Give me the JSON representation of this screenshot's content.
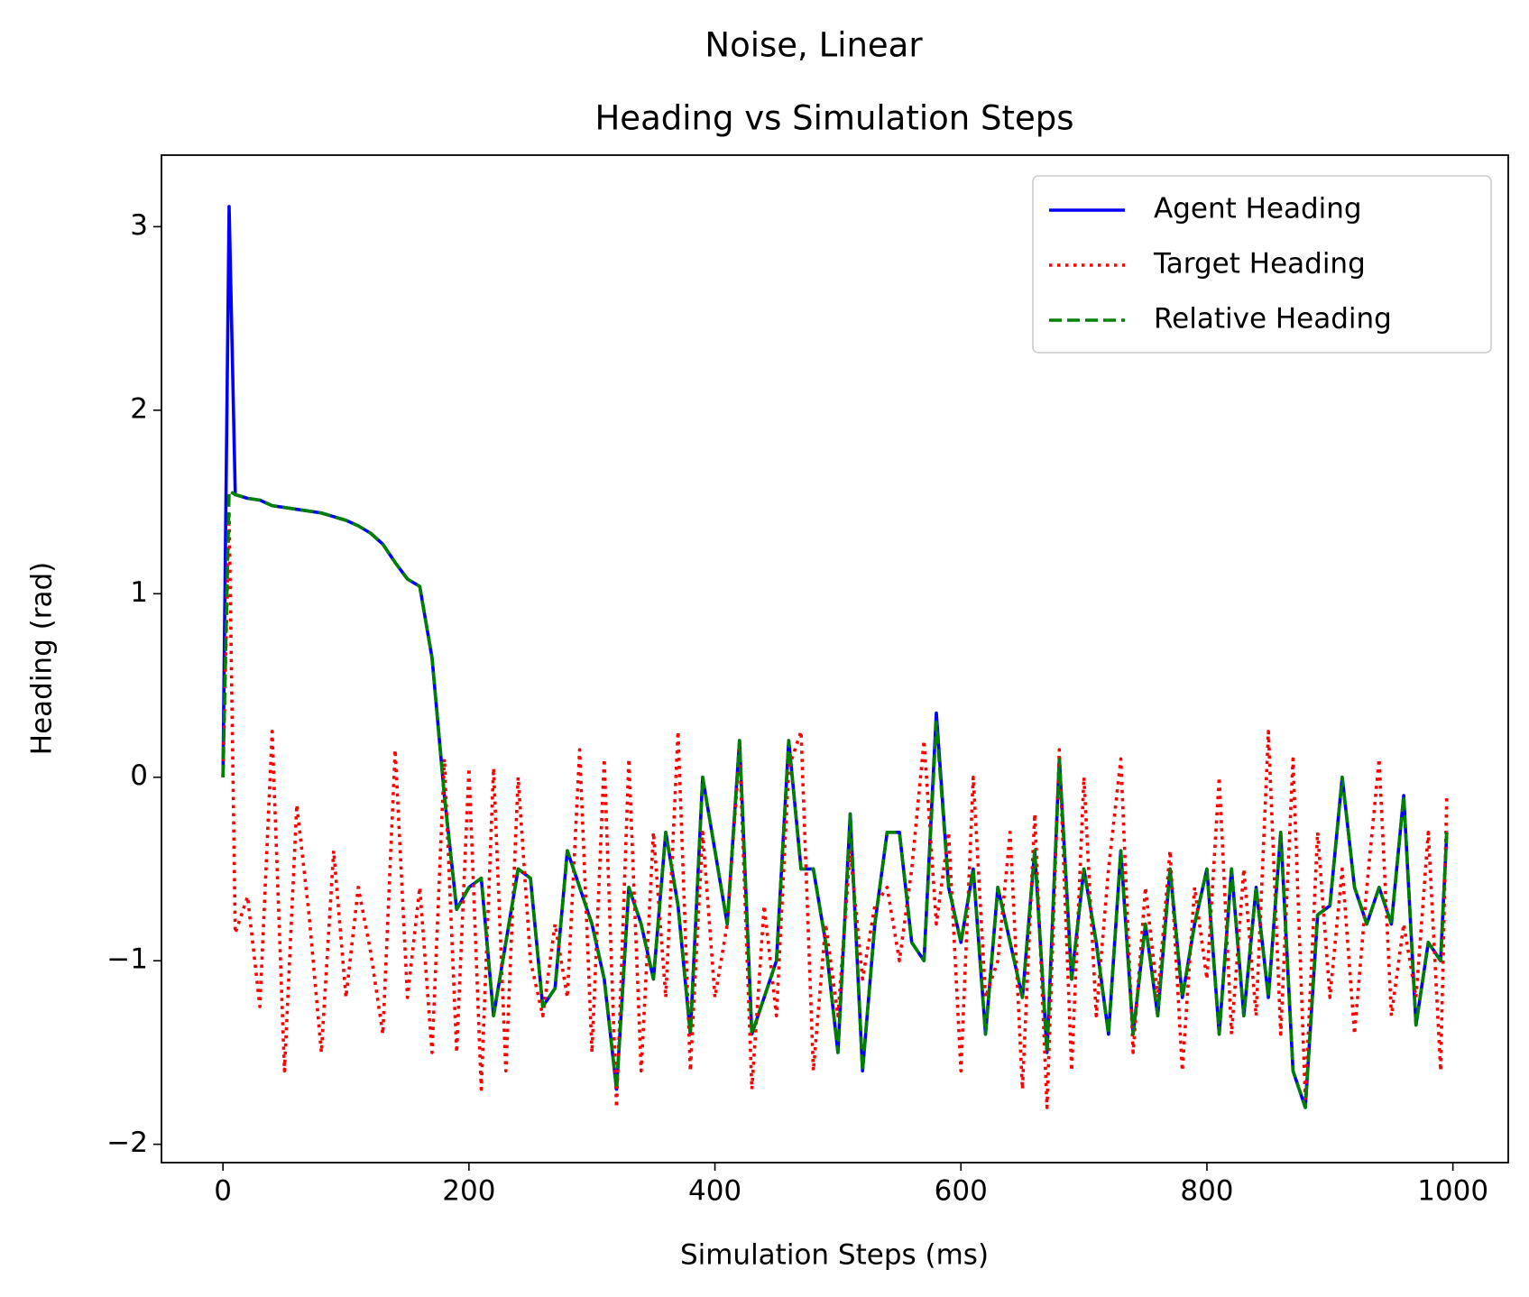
{
  "chart_data": {
    "type": "line",
    "suptitle": "Noise, Linear",
    "title": "Heading vs Simulation Steps",
    "x_label": "Simulation Steps (ms)",
    "y_label": "Heading (rad)",
    "xlim": [
      -50,
      1045
    ],
    "ylim": [
      -2.1,
      3.39
    ],
    "xticks": [
      0,
      200,
      400,
      600,
      800,
      1000
    ],
    "yticks": [
      {
        "value": -2,
        "label": "−2"
      },
      {
        "value": -1,
        "label": "−1"
      },
      0,
      1,
      2,
      3
    ],
    "legend": "upper right",
    "x": [
      0,
      5,
      10,
      20,
      30,
      40,
      50,
      60,
      70,
      80,
      90,
      100,
      110,
      120,
      130,
      140,
      150,
      160,
      170,
      180,
      190,
      200,
      210,
      220,
      230,
      240,
      250,
      260,
      270,
      280,
      290,
      300,
      310,
      320,
      330,
      340,
      350,
      360,
      370,
      380,
      390,
      400,
      410,
      420,
      430,
      440,
      450,
      460,
      470,
      480,
      490,
      500,
      510,
      520,
      530,
      540,
      550,
      560,
      570,
      580,
      590,
      600,
      610,
      620,
      630,
      640,
      650,
      660,
      670,
      680,
      690,
      700,
      710,
      720,
      730,
      740,
      750,
      760,
      770,
      780,
      790,
      800,
      810,
      820,
      830,
      840,
      850,
      860,
      870,
      880,
      890,
      900,
      910,
      920,
      930,
      940,
      950,
      960,
      970,
      980,
      990,
      995
    ],
    "series": [
      {
        "name": "Agent Heading",
        "color": "#0000ff",
        "style": "solid",
        "values": [
          0,
          3.11,
          1.54,
          1.52,
          1.51,
          1.48,
          1.47,
          1.46,
          1.45,
          1.44,
          1.42,
          1.4,
          1.37,
          1.33,
          1.27,
          1.17,
          1.08,
          1.04,
          0.65,
          -0.1,
          -0.72,
          -0.6,
          -0.55,
          -1.3,
          -0.9,
          -0.5,
          -0.55,
          -1.25,
          -1.15,
          -0.4,
          -0.6,
          -0.8,
          -1.1,
          -1.7,
          -0.6,
          -0.8,
          -1.1,
          -0.3,
          -0.7,
          -1.4,
          0.0,
          -0.4,
          -0.8,
          0.2,
          -1.4,
          -1.2,
          -1.0,
          0.2,
          -0.5,
          -0.5,
          -0.9,
          -1.5,
          -0.2,
          -1.6,
          -0.8,
          -0.3,
          -0.3,
          -0.9,
          -1.0,
          0.35,
          -0.6,
          -0.9,
          -0.5,
          -1.4,
          -0.6,
          -0.9,
          -1.2,
          -0.4,
          -1.5,
          0.1,
          -1.1,
          -0.5,
          -0.9,
          -1.4,
          -0.4,
          -1.4,
          -0.8,
          -1.3,
          -0.5,
          -1.2,
          -0.8,
          -0.5,
          -1.4,
          -0.5,
          -1.3,
          -0.6,
          -1.2,
          -0.3,
          -1.6,
          -1.8,
          -0.75,
          -0.7,
          0.0,
          -0.6,
          -0.8,
          -0.6,
          -0.8,
          -0.1,
          -1.35,
          -0.9,
          -1.0,
          -0.3
        ]
      },
      {
        "name": "Target Heading",
        "color": "#ff0000",
        "style": "dotted",
        "values": [
          0,
          1.45,
          -0.85,
          -0.65,
          -1.25,
          0.25,
          -1.6,
          -0.15,
          -0.75,
          -1.5,
          -0.4,
          -1.2,
          -0.6,
          -0.95,
          -1.4,
          0.15,
          -1.2,
          -0.6,
          -1.5,
          0.1,
          -1.5,
          0.05,
          -1.7,
          0.05,
          -1.6,
          0.0,
          -1.0,
          -1.3,
          -0.8,
          -1.2,
          0.15,
          -1.5,
          0.1,
          -1.8,
          0.1,
          -1.6,
          -0.3,
          -1.2,
          0.25,
          -1.6,
          -0.3,
          -1.2,
          -0.8,
          0.15,
          -1.7,
          -0.7,
          -1.3,
          0.05,
          0.25,
          -1.6,
          -0.8,
          -1.3,
          -0.4,
          -1.1,
          -0.7,
          -0.6,
          -1.0,
          -0.5,
          0.2,
          -0.8,
          -0.3,
          -1.6,
          0.0,
          -1.2,
          -1.0,
          -0.3,
          -1.7,
          -0.2,
          -1.8,
          0.15,
          -1.6,
          0.0,
          -1.3,
          -0.5,
          0.1,
          -1.5,
          -0.6,
          -1.2,
          -0.4,
          -1.6,
          -0.6,
          -1.1,
          0.0,
          -1.4,
          -0.5,
          -1.3,
          0.25,
          -1.4,
          0.1,
          -1.75,
          -0.3,
          -1.2,
          -0.5,
          -1.4,
          -0.6,
          0.1,
          -1.3,
          -0.8,
          -1.2,
          -0.3,
          -1.6,
          -0.1
        ]
      },
      {
        "name": "Relative Heading",
        "color": "#008000",
        "style": "dashed",
        "values": [
          0,
          1.56,
          1.54,
          1.52,
          1.51,
          1.48,
          1.47,
          1.46,
          1.45,
          1.44,
          1.42,
          1.4,
          1.37,
          1.33,
          1.27,
          1.17,
          1.08,
          1.04,
          0.65,
          -0.1,
          -0.72,
          -0.6,
          -0.55,
          -1.3,
          -0.9,
          -0.5,
          -0.55,
          -1.25,
          -1.15,
          -0.4,
          -0.6,
          -0.8,
          -1.1,
          -1.7,
          -0.6,
          -0.8,
          -1.1,
          -0.3,
          -0.7,
          -1.4,
          0.0,
          -0.4,
          -0.8,
          0.2,
          -1.4,
          -1.2,
          -1.0,
          0.2,
          -0.5,
          -0.5,
          -0.9,
          -1.5,
          -0.2,
          -1.6,
          -0.8,
          -0.3,
          -0.3,
          -0.9,
          -1.0,
          0.3,
          -0.6,
          -0.9,
          -0.5,
          -1.4,
          -0.6,
          -0.9,
          -1.2,
          -0.4,
          -1.5,
          0.1,
          -1.1,
          -0.5,
          -0.9,
          -1.4,
          -0.4,
          -1.4,
          -0.8,
          -1.3,
          -0.5,
          -1.2,
          -0.8,
          -0.5,
          -1.4,
          -0.5,
          -1.3,
          -0.6,
          -1.2,
          -0.3,
          -1.6,
          -1.8,
          -0.75,
          -0.7,
          0.0,
          -0.6,
          -0.8,
          -0.6,
          -0.8,
          -0.1,
          -1.35,
          -0.9,
          -1.0,
          -0.3
        ]
      }
    ]
  }
}
